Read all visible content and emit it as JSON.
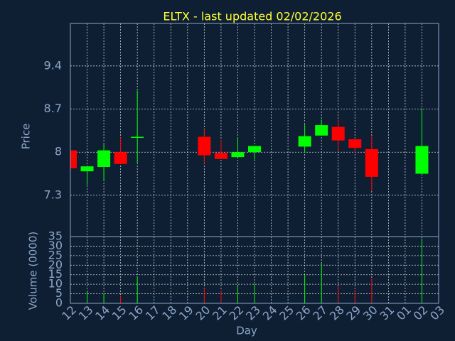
{
  "chart_data": {
    "type": "candlestick",
    "title": "ELTX - last updated 02/02/2026",
    "x_label": "Day",
    "y_label": "Price",
    "categories": [
      "12",
      "13",
      "14",
      "15",
      "16",
      "17",
      "18",
      "19",
      "20",
      "21",
      "22",
      "23",
      "24",
      "25",
      "26",
      "27",
      "28",
      "29",
      "30",
      "31",
      "01",
      "02",
      "03"
    ],
    "open": [
      8.03,
      7.69,
      7.76,
      8.0,
      8.24,
      null,
      null,
      null,
      8.25,
      7.99,
      7.92,
      8.0,
      null,
      null,
      8.09,
      8.27,
      8.41,
      8.21,
      8.05,
      null,
      null,
      7.65,
      null
    ],
    "high": [
      8.03,
      7.77,
      8.14,
      8.24,
      9.0,
      null,
      null,
      null,
      8.37,
      8.2,
      8.24,
      8.1,
      null,
      null,
      8.45,
      8.53,
      8.53,
      8.21,
      8.26,
      null,
      null,
      8.71,
      null
    ],
    "low": [
      7.74,
      7.47,
      7.55,
      7.81,
      7.82,
      null,
      null,
      null,
      7.81,
      7.89,
      7.92,
      7.88,
      null,
      null,
      7.99,
      8.27,
      8.02,
      7.99,
      7.37,
      null,
      null,
      7.65,
      null
    ],
    "close": [
      7.74,
      7.77,
      8.03,
      7.81,
      8.25,
      null,
      null,
      null,
      7.95,
      7.89,
      8.0,
      8.1,
      null,
      null,
      8.26,
      8.44,
      8.19,
      8.07,
      7.6,
      null,
      null,
      8.1,
      null
    ],
    "up_color": "#00ff00",
    "down_color": "#ff0000",
    "ylim": [
      6.63,
      10.09
    ],
    "yticks": [
      7.3,
      8,
      8.7,
      9.4
    ],
    "grid": true,
    "volume": {
      "y_label": "Volume (0000)",
      "values": [
        null,
        6,
        5,
        4,
        14,
        null,
        null,
        null,
        8,
        7,
        9,
        10,
        null,
        null,
        15,
        21,
        9,
        7,
        13,
        null,
        null,
        34,
        null
      ],
      "ylim": [
        0,
        35
      ],
      "yticks": [
        0,
        5,
        10,
        15,
        20,
        25,
        30,
        35
      ]
    }
  }
}
